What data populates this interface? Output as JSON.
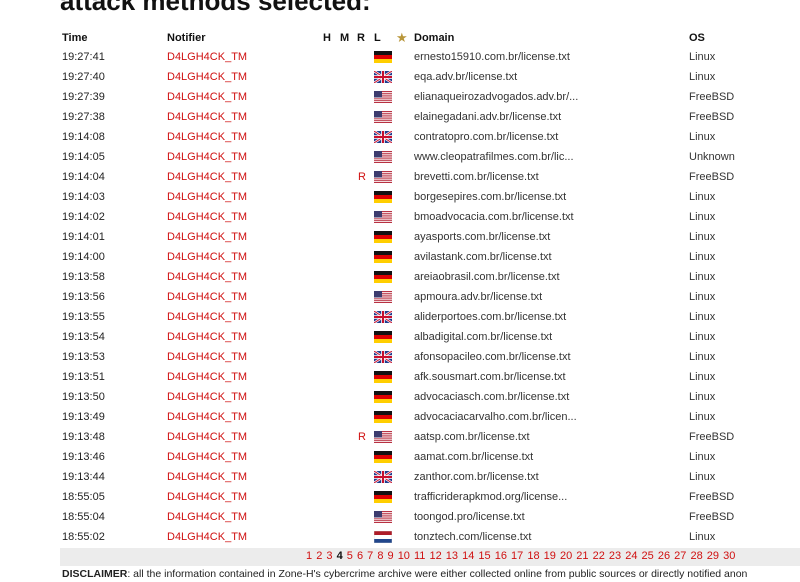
{
  "heading": "attack methods selected:",
  "headers": {
    "time": "Time",
    "notifier": "Notifier",
    "h": "H",
    "m": "M",
    "r": "R",
    "l": "L",
    "star": "★",
    "domain": "Domain",
    "os": "OS"
  },
  "rows": [
    {
      "time": "19:27:41",
      "notifier": "D4LGH4CK_TM",
      "redef": "",
      "flag": "de",
      "domain": "ernesto15910.com.br/license.txt",
      "os": "Linux"
    },
    {
      "time": "19:27:40",
      "notifier": "D4LGH4CK_TM",
      "redef": "",
      "flag": "gb",
      "domain": "eqa.adv.br/license.txt",
      "os": "Linux"
    },
    {
      "time": "19:27:39",
      "notifier": "D4LGH4CK_TM",
      "redef": "",
      "flag": "us",
      "domain": "elianaqueirozadvogados.adv.br/...",
      "os": "FreeBSD"
    },
    {
      "time": "19:27:38",
      "notifier": "D4LGH4CK_TM",
      "redef": "",
      "flag": "us",
      "domain": "elainegadani.adv.br/license.txt",
      "os": "FreeBSD"
    },
    {
      "time": "19:14:08",
      "notifier": "D4LGH4CK_TM",
      "redef": "",
      "flag": "gb",
      "domain": "contratopro.com.br/license.txt",
      "os": "Linux"
    },
    {
      "time": "19:14:05",
      "notifier": "D4LGH4CK_TM",
      "redef": "",
      "flag": "us",
      "domain": "www.cleopatrafilmes.com.br/lic...",
      "os": "Unknown"
    },
    {
      "time": "19:14:04",
      "notifier": "D4LGH4CK_TM",
      "redef": "R",
      "flag": "us",
      "domain": "brevetti.com.br/license.txt",
      "os": "FreeBSD"
    },
    {
      "time": "19:14:03",
      "notifier": "D4LGH4CK_TM",
      "redef": "",
      "flag": "de",
      "domain": "borgesepires.com.br/license.txt",
      "os": "Linux"
    },
    {
      "time": "19:14:02",
      "notifier": "D4LGH4CK_TM",
      "redef": "",
      "flag": "us",
      "domain": "bmoadvocacia.com.br/license.txt",
      "os": "Linux"
    },
    {
      "time": "19:14:01",
      "notifier": "D4LGH4CK_TM",
      "redef": "",
      "flag": "de",
      "domain": "ayasports.com.br/license.txt",
      "os": "Linux"
    },
    {
      "time": "19:14:00",
      "notifier": "D4LGH4CK_TM",
      "redef": "",
      "flag": "de",
      "domain": "avilastank.com.br/license.txt",
      "os": "Linux"
    },
    {
      "time": "19:13:58",
      "notifier": "D4LGH4CK_TM",
      "redef": "",
      "flag": "de",
      "domain": "areiaobrasil.com.br/license.txt",
      "os": "Linux"
    },
    {
      "time": "19:13:56",
      "notifier": "D4LGH4CK_TM",
      "redef": "",
      "flag": "us",
      "domain": "apmoura.adv.br/license.txt",
      "os": "Linux"
    },
    {
      "time": "19:13:55",
      "notifier": "D4LGH4CK_TM",
      "redef": "",
      "flag": "gb",
      "domain": "aliderportoes.com.br/license.txt",
      "os": "Linux"
    },
    {
      "time": "19:13:54",
      "notifier": "D4LGH4CK_TM",
      "redef": "",
      "flag": "de",
      "domain": "albadigital.com.br/license.txt",
      "os": "Linux"
    },
    {
      "time": "19:13:53",
      "notifier": "D4LGH4CK_TM",
      "redef": "",
      "flag": "gb",
      "domain": "afonsopacileo.com.br/license.txt",
      "os": "Linux"
    },
    {
      "time": "19:13:51",
      "notifier": "D4LGH4CK_TM",
      "redef": "",
      "flag": "de",
      "domain": "afk.sousmart.com.br/license.txt",
      "os": "Linux"
    },
    {
      "time": "19:13:50",
      "notifier": "D4LGH4CK_TM",
      "redef": "",
      "flag": "de",
      "domain": "advocaciasch.com.br/license.txt",
      "os": "Linux"
    },
    {
      "time": "19:13:49",
      "notifier": "D4LGH4CK_TM",
      "redef": "",
      "flag": "de",
      "domain": "advocaciacarvalho.com.br/licen...",
      "os": "Linux"
    },
    {
      "time": "19:13:48",
      "notifier": "D4LGH4CK_TM",
      "redef": "R",
      "flag": "us",
      "domain": "aatsp.com.br/license.txt",
      "os": "FreeBSD"
    },
    {
      "time": "19:13:46",
      "notifier": "D4LGH4CK_TM",
      "redef": "",
      "flag": "de",
      "domain": "aamat.com.br/license.txt",
      "os": "Linux"
    },
    {
      "time": "19:13:44",
      "notifier": "D4LGH4CK_TM",
      "redef": "",
      "flag": "gb",
      "domain": "zanthor.com.br/license.txt",
      "os": "Linux"
    },
    {
      "time": "18:55:05",
      "notifier": "D4LGH4CK_TM",
      "redef": "",
      "flag": "de",
      "domain": "trafficriderapkmod.org/license...",
      "os": "FreeBSD"
    },
    {
      "time": "18:55:04",
      "notifier": "D4LGH4CK_TM",
      "redef": "",
      "flag": "us",
      "domain": "toongod.pro/license.txt",
      "os": "FreeBSD"
    },
    {
      "time": "18:55:02",
      "notifier": "D4LGH4CK_TM",
      "redef": "",
      "flag": "nl",
      "domain": "tonztech.com/license.txt",
      "os": "Linux"
    }
  ],
  "pagination": {
    "pages": [
      "1",
      "2",
      "3",
      "4",
      "5",
      "6",
      "7",
      "8",
      "9",
      "10",
      "11",
      "12",
      "13",
      "14",
      "15",
      "16",
      "17",
      "18",
      "19",
      "20",
      "21",
      "22",
      "23",
      "24",
      "25",
      "26",
      "27",
      "28",
      "29",
      "30"
    ],
    "current": "4"
  },
  "disclaimer": {
    "label": "DISCLAIMER",
    "text": ": all the information contained in Zone-H's cybercrime archive were either collected online from public sources or directly notified anon"
  },
  "colors": {
    "notifier": "#d01010",
    "star": "#b8963a",
    "pager_bg": "#ececec"
  }
}
